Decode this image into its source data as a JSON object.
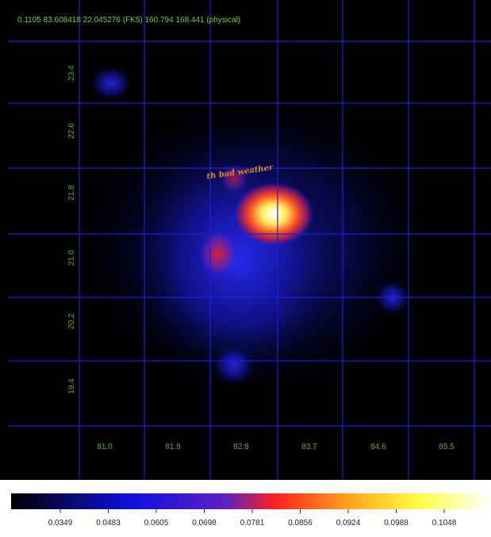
{
  "status_bar": "0.1105    83.608418 22.045276 (FK5)    160.794 168.441 (physical)",
  "grid_labels": {
    "dec": [
      "23.4",
      "22.6",
      "21.8",
      "21.0",
      "20.2",
      "19.4"
    ],
    "ra": [
      "81.0",
      "81.9",
      "82.8",
      "83.7",
      "84.6",
      "85.5"
    ]
  },
  "overlay_text": "th bad weather",
  "colorbar": {
    "ticks": [
      "0.0349",
      "0.0483",
      "0.0605",
      "0.0698",
      "0.0781",
      "0.0856",
      "0.0924",
      "0.0988",
      "0.1048"
    ]
  }
}
